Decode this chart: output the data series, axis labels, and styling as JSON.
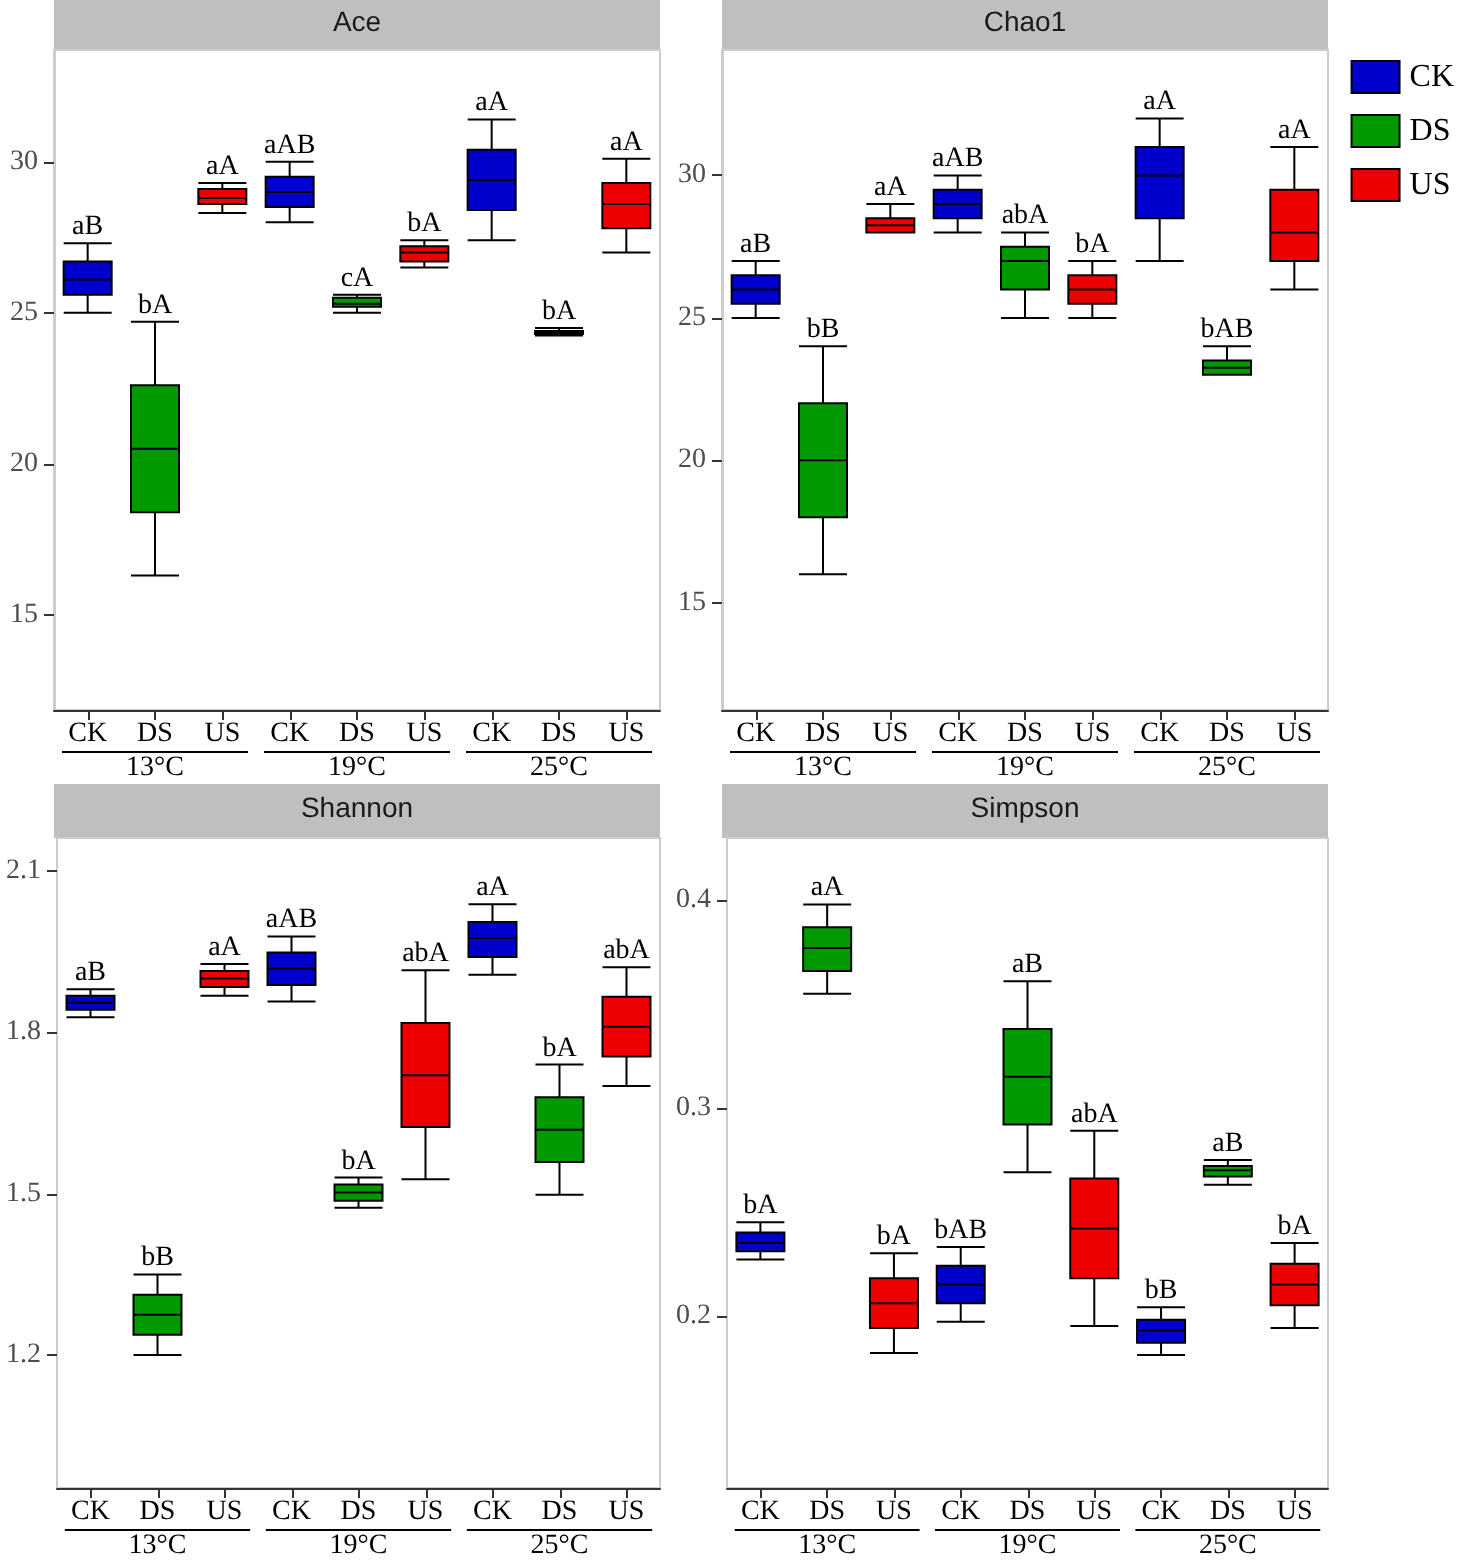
{
  "chart_data": [
    {
      "type": "box",
      "title": "Ace",
      "categories": [
        "CK",
        "DS",
        "US",
        "CK",
        "DS",
        "US",
        "CK",
        "DS",
        "US"
      ],
      "ylim": [
        11.85,
        33.7
      ],
      "yticks": [
        15,
        20,
        25,
        30
      ],
      "grid": false,
      "legend": false,
      "series": [
        {
          "color": "#0000cc",
          "boxes": [
            {
              "low": 25.0,
              "q1": 25.6,
              "median": 26.1,
              "q3": 26.7,
              "high": 27.3
            },
            null,
            null,
            {
              "low": 28.0,
              "q1": 28.5,
              "median": 29.0,
              "q3": 29.5,
              "high": 30.0
            },
            null,
            null,
            {
              "low": 27.4,
              "q1": 28.4,
              "median": 29.4,
              "q3": 30.4,
              "high": 31.4
            },
            null,
            null
          ]
        },
        {
          "color": "#009900",
          "boxes": [
            null,
            {
              "low": 16.3,
              "q1": 18.4,
              "median": 20.5,
              "q3": 22.6,
              "high": 24.7
            },
            null,
            null,
            {
              "low": 25.0,
              "q1": 25.2,
              "median": 25.3,
              "q3": 25.5,
              "high": 25.6
            },
            null,
            null,
            {
              "low": 24.25,
              "q1": 24.3,
              "median": 24.35,
              "q3": 24.4,
              "high": 24.5
            },
            null
          ]
        },
        {
          "color": "#ee0000",
          "boxes": [
            null,
            null,
            {
              "low": 28.3,
              "q1": 28.6,
              "median": 28.8,
              "q3": 29.1,
              "high": 29.3
            },
            null,
            null,
            {
              "low": 26.5,
              "q1": 26.7,
              "median": 27.0,
              "q3": 27.2,
              "high": 27.4
            },
            null,
            null,
            {
              "low": 27.0,
              "q1": 27.8,
              "median": 28.6,
              "q3": 29.3,
              "high": 30.1
            }
          ]
        }
      ],
      "annotations": [
        "aB",
        "bA",
        "aA",
        "aAB",
        "cA",
        "bA",
        "aA",
        "bA",
        "aA",
        "13°C",
        "19°C",
        "25°C"
      ]
    },
    {
      "type": "box",
      "title": "Chao1",
      "categories": [
        "CK",
        "DS",
        "US",
        "CK",
        "DS",
        "US",
        "CK",
        "DS",
        "US"
      ],
      "ylim": [
        11.24,
        34.4
      ],
      "yticks": [
        15,
        20,
        25,
        30
      ],
      "grid": false,
      "legend": "top right",
      "series": [
        {
          "name": "CK",
          "color": "#0000cc",
          "boxes": [
            {
              "low": 25.0,
              "q1": 25.5,
              "median": 26.0,
              "q3": 26.5,
              "high": 27.0
            },
            null,
            null,
            {
              "low": 28.0,
              "q1": 28.5,
              "median": 29.0,
              "q3": 29.5,
              "high": 30.0
            },
            null,
            null,
            {
              "low": 27.0,
              "q1": 28.5,
              "median": 30.0,
              "q3": 31.0,
              "high": 32.0
            },
            null,
            null
          ]
        },
        {
          "name": "DS",
          "color": "#009900",
          "boxes": [
            null,
            {
              "low": 16.0,
              "q1": 18.0,
              "median": 20.0,
              "q3": 22.0,
              "high": 24.0
            },
            null,
            null,
            {
              "low": 25.0,
              "q1": 26.0,
              "median": 27.0,
              "q3": 27.5,
              "high": 28.0
            },
            null,
            null,
            {
              "low": 23.0,
              "q1": 23.0,
              "median": 23.25,
              "q3": 23.5,
              "high": 24.0
            },
            null
          ]
        },
        {
          "name": "US",
          "color": "#ee0000",
          "boxes": [
            null,
            null,
            {
              "low": 28.0,
              "q1": 28.0,
              "median": 28.25,
              "q3": 28.5,
              "high": 29.0
            },
            null,
            null,
            {
              "low": 25.0,
              "q1": 25.5,
              "median": 26.0,
              "q3": 26.5,
              "high": 27.0
            },
            null,
            null,
            {
              "low": 26.0,
              "q1": 27.0,
              "median": 28.0,
              "q3": 29.5,
              "high": 31.0
            }
          ]
        }
      ],
      "annotations": [
        "aB",
        "bB",
        "aA",
        "aAB",
        "abA",
        "bA",
        "aA",
        "bAB",
        "aA",
        "13°C",
        "19°C",
        "25°C"
      ]
    },
    {
      "type": "box",
      "title": "Shannon",
      "categories": [
        "CK",
        "DS",
        "US",
        "CK",
        "DS",
        "US",
        "CK",
        "DS",
        "US"
      ],
      "ylim": [
        0.953,
        2.161
      ],
      "yticks": [
        1.2,
        1.5,
        1.8,
        2.1
      ],
      "grid": false,
      "legend": false,
      "series": [
        {
          "color": "#0000cc",
          "boxes": [
            {
              "low": 1.828,
              "q1": 1.842,
              "median": 1.855,
              "q3": 1.868,
              "high": 1.88
            },
            null,
            null,
            {
              "low": 1.857,
              "q1": 1.888,
              "median": 1.918,
              "q3": 1.948,
              "high": 1.978
            },
            null,
            null,
            {
              "low": 1.907,
              "q1": 1.94,
              "median": 1.975,
              "q3": 2.005,
              "high": 2.038
            },
            null,
            null
          ]
        },
        {
          "color": "#009900",
          "boxes": [
            null,
            {
              "low": 1.2,
              "q1": 1.238,
              "median": 1.275,
              "q3": 1.312,
              "high": 1.35
            },
            null,
            null,
            {
              "low": 1.474,
              "q1": 1.487,
              "median": 1.502,
              "q3": 1.517,
              "high": 1.53
            },
            null,
            null,
            {
              "low": 1.498,
              "q1": 1.559,
              "median": 1.619,
              "q3": 1.679,
              "high": 1.74
            },
            null
          ]
        },
        {
          "color": "#ee0000",
          "boxes": [
            null,
            null,
            {
              "low": 1.868,
              "q1": 1.884,
              "median": 1.9,
              "q3": 1.914,
              "high": 1.927
            },
            null,
            null,
            {
              "low": 1.527,
              "q1": 1.624,
              "median": 1.72,
              "q3": 1.817,
              "high": 1.915
            },
            null,
            null,
            {
              "low": 1.7,
              "q1": 1.755,
              "median": 1.81,
              "q3": 1.866,
              "high": 1.921
            }
          ]
        }
      ],
      "annotations": [
        "aB",
        "bB",
        "aA",
        "aAB",
        "bA",
        "abA",
        "aA",
        "bA",
        "abA",
        "13°C",
        "19°C",
        "25°C"
      ]
    },
    {
      "type": "box",
      "title": "Simpson",
      "categories": [
        "CK",
        "DS",
        "US",
        "CK",
        "DS",
        "US",
        "CK",
        "DS",
        "US"
      ],
      "ylim": [
        0.117,
        0.43
      ],
      "yticks": [
        0.2,
        0.3,
        0.4
      ],
      "grid": false,
      "legend": false,
      "series": [
        {
          "color": "#0000cc",
          "boxes": [
            {
              "low": 0.227,
              "q1": 0.231,
              "median": 0.235,
              "q3": 0.24,
              "high": 0.245
            },
            null,
            null,
            {
              "low": 0.197,
              "q1": 0.206,
              "median": 0.215,
              "q3": 0.224,
              "high": 0.233
            },
            null,
            null,
            {
              "low": 0.181,
              "q1": 0.187,
              "median": 0.193,
              "q3": 0.198,
              "high": 0.204
            },
            null,
            null
          ]
        },
        {
          "color": "#009900",
          "boxes": [
            null,
            {
              "low": 0.355,
              "q1": 0.366,
              "median": 0.377,
              "q3": 0.387,
              "high": 0.398
            },
            null,
            null,
            {
              "low": 0.269,
              "q1": 0.292,
              "median": 0.315,
              "q3": 0.338,
              "high": 0.361
            },
            null,
            null,
            {
              "low": 0.263,
              "q1": 0.267,
              "median": 0.27,
              "q3": 0.272,
              "high": 0.275
            },
            null
          ]
        },
        {
          "color": "#ee0000",
          "boxes": [
            null,
            null,
            {
              "low": 0.182,
              "q1": 0.194,
              "median": 0.206,
              "q3": 0.218,
              "high": 0.23
            },
            null,
            null,
            {
              "low": 0.195,
              "q1": 0.218,
              "median": 0.242,
              "q3": 0.266,
              "high": 0.289
            },
            null,
            null,
            {
              "low": 0.194,
              "q1": 0.205,
              "median": 0.215,
              "q3": 0.225,
              "high": 0.235
            }
          ]
        }
      ],
      "annotations": [
        "bA",
        "aA",
        "bA",
        "bAB",
        "aB",
        "abA",
        "bB",
        "aB",
        "bA",
        "13°C",
        "19°C",
        "25°C"
      ]
    }
  ]
}
